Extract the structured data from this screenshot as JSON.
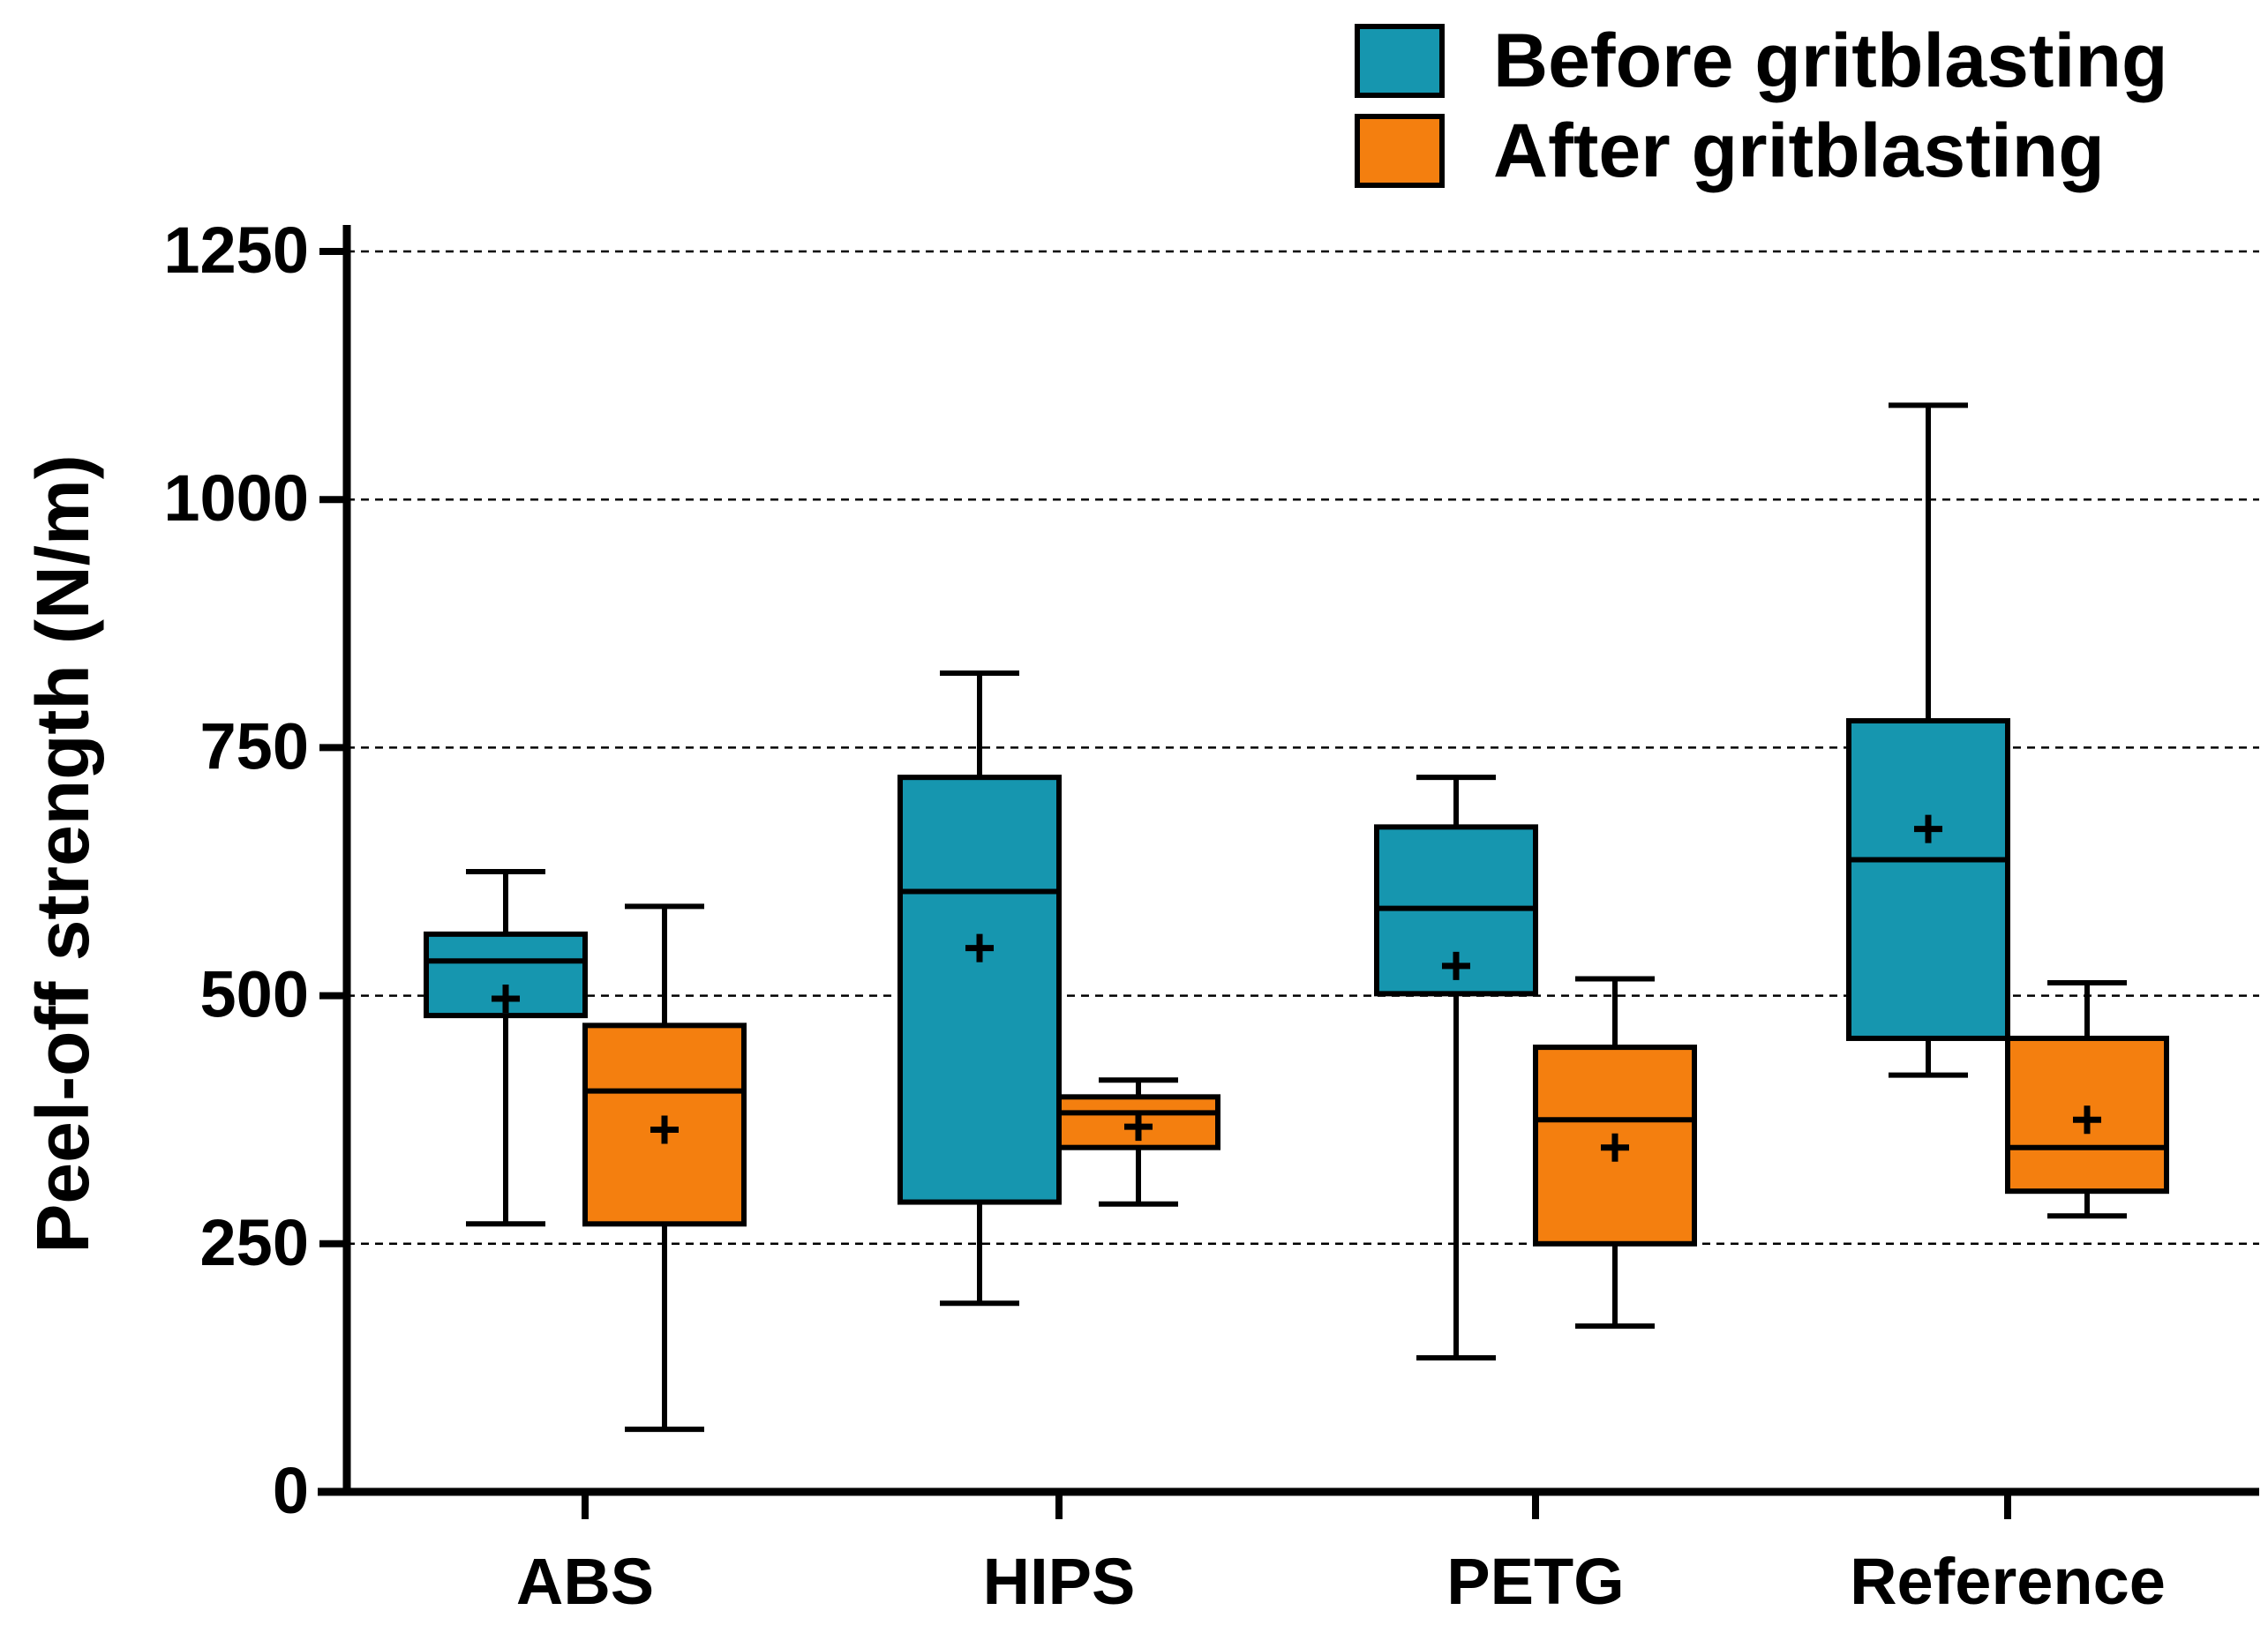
{
  "chart_data": {
    "type": "boxplot",
    "title": "",
    "xlabel": "",
    "ylabel": "Peel-off strength (N/m)",
    "ylim": [
      0,
      1250
    ],
    "yticks": [
      0,
      250,
      500,
      750,
      1000,
      1250
    ],
    "ytick_labels": [
      "0",
      "250",
      "500",
      "750",
      "1000",
      "1250"
    ],
    "gridlines": "dashed, horizontal",
    "legend_position": "top-right",
    "categories": [
      "ABS",
      "HIPS",
      "PETG",
      "Reference"
    ],
    "series": [
      {
        "name": "Before gritblasting",
        "color": "#1696AF",
        "boxes": [
          {
            "min": 270,
            "q1": 480,
            "median": 535,
            "q3": 562,
            "max": 625,
            "mean": 497
          },
          {
            "min": 190,
            "q1": 292,
            "median": 605,
            "q3": 720,
            "max": 825,
            "mean": 548
          },
          {
            "min": 135,
            "q1": 502,
            "median": 588,
            "q3": 670,
            "max": 720,
            "mean": 530
          },
          {
            "min": 420,
            "q1": 457,
            "median": 637,
            "q3": 777,
            "max": 1095,
            "mean": 668
          }
        ]
      },
      {
        "name": "After gritblasting",
        "color": "#F47F0F",
        "boxes": [
          {
            "min": 63,
            "q1": 270,
            "median": 404,
            "q3": 470,
            "max": 590,
            "mean": 365
          },
          {
            "min": 290,
            "q1": 347,
            "median": 382,
            "q3": 398,
            "max": 415,
            "mean": 368
          },
          {
            "min": 167,
            "q1": 250,
            "median": 375,
            "q3": 448,
            "max": 517,
            "mean": 347
          },
          {
            "min": 278,
            "q1": 303,
            "median": 347,
            "q3": 457,
            "max": 513,
            "mean": 375
          }
        ]
      }
    ]
  }
}
